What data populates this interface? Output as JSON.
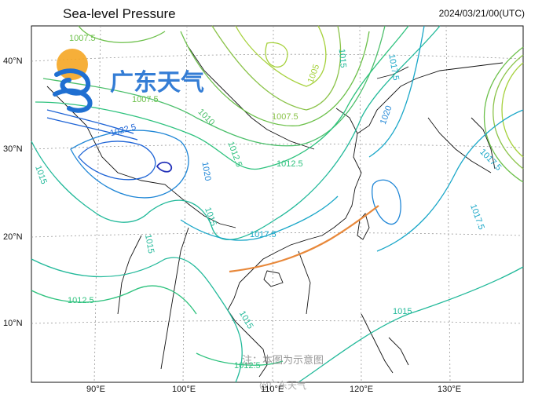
{
  "header": {
    "title": "Sea-level Pressure",
    "timestamp": "2024/03/21/00(UTC)"
  },
  "axes": {
    "lat_labels": [
      "40°N",
      "30°N",
      "20°N",
      "10°N"
    ],
    "lon_labels": [
      "90°E",
      "100°E",
      "110°E",
      "120°E",
      "130°E"
    ]
  },
  "watermark": {
    "logo_text": "广东天气",
    "note": "注：本图为示意图",
    "weibo": "@广东天气"
  },
  "isobar_labels": {
    "l1007_5_a": "1007.5",
    "l1007_5_b": "1007.5",
    "l1007_5_c": "1007.5",
    "l1005": "1005",
    "l1010_a": "1010",
    "l1012_5_a": "1012.5",
    "l1012_5_b": "1012.5",
    "l1012_5_c": "1012.5",
    "l1012_5_d": "1012.5",
    "l1015_a": "1015",
    "l1015_b": "1015",
    "l1015_c": "1015",
    "l1015_d": "1015",
    "l1015_e": "1015",
    "l1015_f": "1015",
    "l1017_5_a": "1017.5",
    "l1017_5_b": "1017.5",
    "l1017_5_c": "1017.5",
    "l1017_5_d": "1017.5",
    "l1020_a": "1020",
    "l1020_b": "1020",
    "l1022_5": "1022.5"
  },
  "colors": {
    "low_pressure": "#9acd32",
    "mid_pressure": "#2ec27e",
    "high_pressure": "#1aa7c8",
    "very_high": "#1e64d6",
    "trough_line": "#e8883a"
  }
}
